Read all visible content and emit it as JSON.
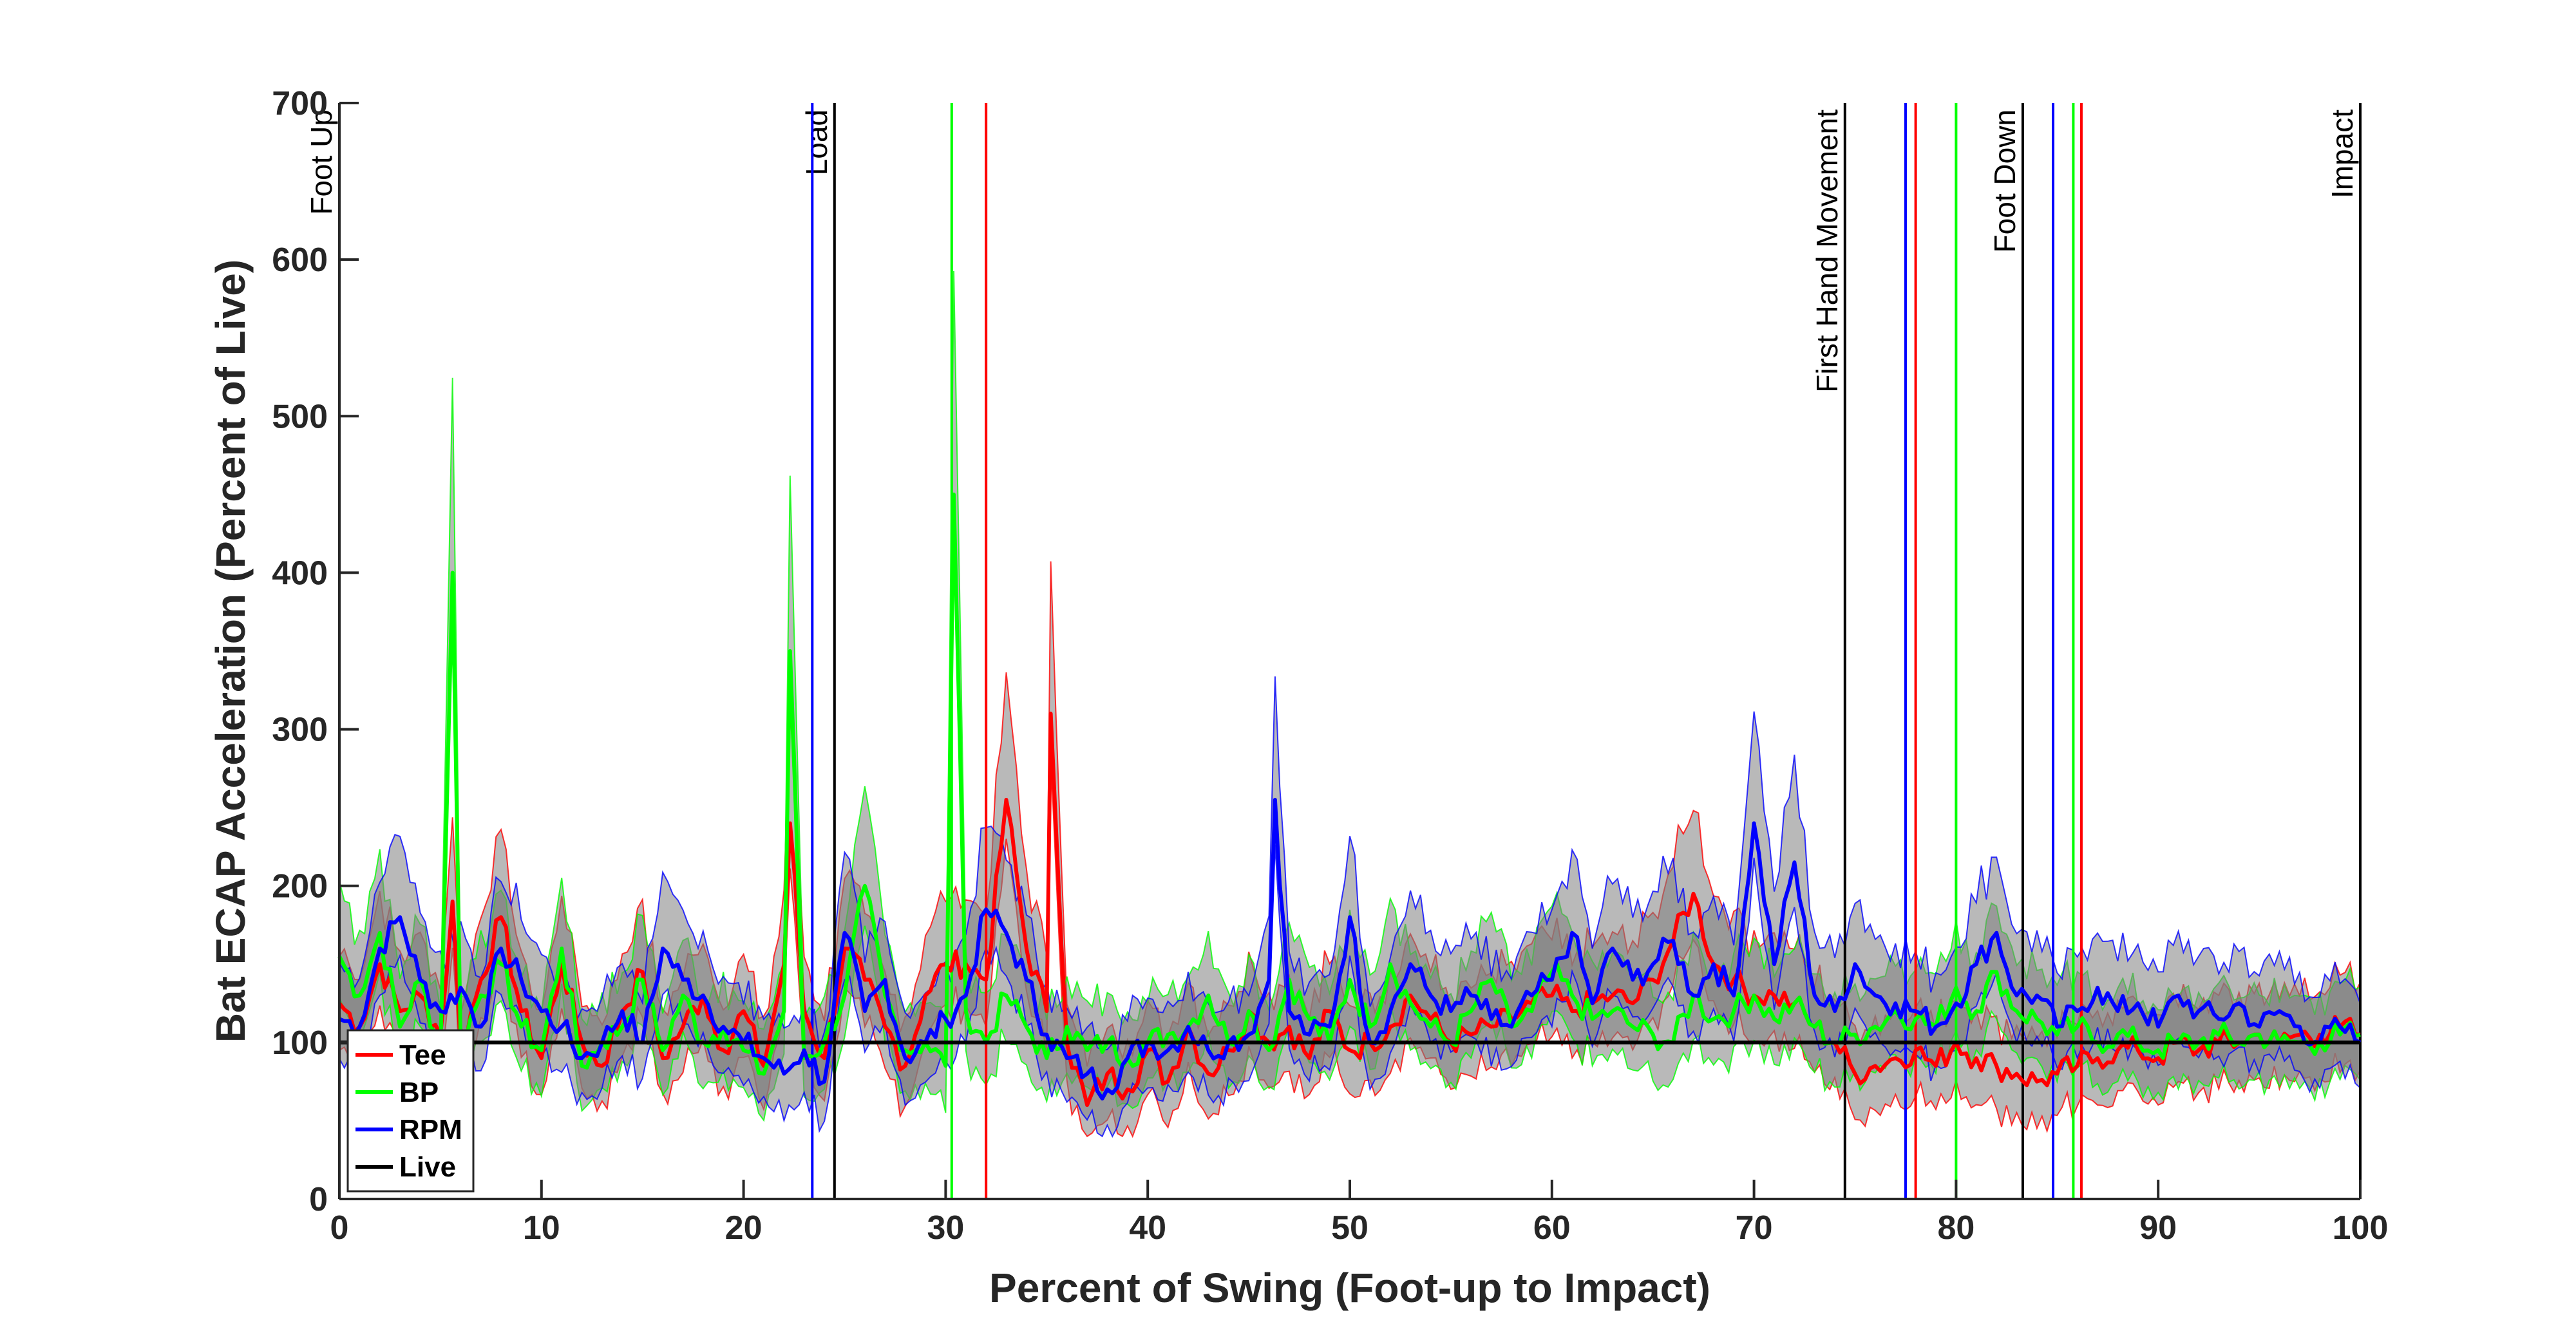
{
  "chart_data": {
    "type": "line",
    "title": "",
    "xlabel": "Percent of Swing (Foot-up to Impact)",
    "ylabel": "Bat ECAP Acceleration (Percent of Live)",
    "xlim": [
      0,
      100
    ],
    "ylim": [
      0,
      700
    ],
    "xticks": [
      0,
      10,
      20,
      30,
      40,
      50,
      60,
      70,
      80,
      90,
      100
    ],
    "yticks": [
      0,
      100,
      200,
      300,
      400,
      500,
      600,
      700
    ],
    "grid": false,
    "legend_position": "bottom-left",
    "shading": "gray band = variability around each mean curve",
    "series": [
      {
        "name": "Tee",
        "color": "#ff0000",
        "x": [
          0,
          1,
          2,
          3,
          4,
          5,
          5.6,
          6,
          7,
          8,
          9,
          10,
          11,
          12,
          13,
          14,
          15,
          16,
          17,
          18,
          19,
          20,
          21,
          22,
          22.3,
          23,
          24,
          25,
          26,
          27,
          28,
          29,
          30,
          31,
          32,
          33,
          34,
          35,
          35.2,
          36,
          37,
          38,
          39,
          40,
          41,
          42,
          43,
          44,
          45,
          46,
          47,
          48,
          49,
          50,
          51,
          52,
          53,
          54,
          55,
          56,
          57,
          58,
          59,
          60,
          61,
          62,
          63,
          64,
          65,
          66,
          67,
          68,
          69,
          70,
          71,
          72,
          73,
          74,
          75,
          76,
          77,
          78,
          79,
          80,
          81,
          82,
          83,
          84,
          85,
          86,
          87,
          88,
          89,
          90,
          91,
          92,
          93,
          94,
          95,
          96,
          97,
          98,
          99,
          100
        ],
        "values": [
          125,
          110,
          150,
          120,
          130,
          105,
          190,
          95,
          140,
          180,
          120,
          90,
          150,
          100,
          85,
          120,
          145,
          90,
          110,
          130,
          95,
          120,
          85,
          150,
          240,
          120,
          90,
          160,
          140,
          110,
          85,
          130,
          150,
          150,
          140,
          255,
          160,
          120,
          310,
          100,
          60,
          80,
          70,
          95,
          75,
          110,
          80,
          95,
          120,
          100,
          110,
          90,
          120,
          95,
          100,
          110,
          130,
          115,
          100,
          105,
          110,
          115,
          125,
          130,
          120,
          125,
          130,
          125,
          140,
          165,
          195,
          150,
          140,
          130,
          130,
          125,
          110,
          100,
          80,
          85,
          90,
          95,
          85,
          100,
          90,
          85,
          80,
          75,
          80,
          85,
          90,
          95,
          95,
          90,
          100,
          95,
          100,
          100,
          105,
          100,
          105,
          105,
          110,
          105
        ]
      },
      {
        "name": "BP",
        "color": "#00ff00",
        "x": [
          0,
          1,
          2,
          3,
          4,
          5,
          5.6,
          6,
          7,
          8,
          9,
          10,
          11,
          12,
          13,
          14,
          15,
          16,
          17,
          18,
          19,
          20,
          21,
          22,
          22.3,
          23,
          24,
          25,
          26,
          27,
          28,
          29,
          30,
          30.4,
          31,
          32,
          33,
          34,
          35,
          36,
          37,
          38,
          39,
          40,
          41,
          42,
          43,
          44,
          45,
          46,
          47,
          48,
          49,
          50,
          51,
          52,
          53,
          54,
          55,
          56,
          57,
          58,
          59,
          60,
          61,
          62,
          63,
          64,
          65,
          66,
          67,
          68,
          69,
          70,
          71,
          72,
          73,
          74,
          75,
          76,
          77,
          78,
          79,
          80,
          81,
          82,
          83,
          84,
          85,
          86,
          87,
          88,
          89,
          90,
          91,
          92,
          93,
          94,
          95,
          96,
          97,
          98,
          99,
          100
        ],
        "values": [
          155,
          130,
          170,
          110,
          140,
          95,
          400,
          100,
          130,
          150,
          110,
          95,
          160,
          85,
          100,
          110,
          140,
          95,
          130,
          100,
          110,
          95,
          80,
          120,
          350,
          90,
          100,
          130,
          200,
          130,
          95,
          100,
          85,
          450,
          120,
          100,
          130,
          110,
          90,
          110,
          95,
          100,
          90,
          100,
          105,
          110,
          130,
          100,
          120,
          95,
          140,
          115,
          100,
          140,
          110,
          150,
          125,
          110,
          100,
          120,
          140,
          110,
          120,
          145,
          130,
          115,
          120,
          110,
          105,
          100,
          130,
          115,
          120,
          130,
          115,
          125,
          110,
          100,
          105,
          110,
          120,
          115,
          110,
          135,
          120,
          145,
          120,
          115,
          105,
          110,
          100,
          105,
          100,
          95,
          100,
          100,
          105,
          100,
          105,
          100,
          100,
          100,
          105,
          105
        ]
      },
      {
        "name": "RPM",
        "color": "#0000ff",
        "x": [
          0,
          1,
          2,
          3,
          4,
          5,
          6,
          7,
          8,
          9,
          10,
          11,
          12,
          13,
          14,
          15,
          16,
          17,
          18,
          19,
          20,
          21,
          22,
          23,
          24,
          25,
          26,
          27,
          28,
          29,
          30,
          31,
          32,
          33,
          34,
          35,
          36,
          37,
          38,
          39,
          40,
          41,
          42,
          43,
          44,
          45,
          46,
          46.3,
          47,
          48,
          49,
          50,
          51,
          52,
          53,
          54,
          55,
          56,
          57,
          58,
          59,
          60,
          61,
          62,
          63,
          64,
          65,
          66,
          67,
          68,
          69,
          70,
          71,
          72,
          73,
          74,
          75,
          76,
          77,
          78,
          79,
          80,
          81,
          82,
          83,
          84,
          85,
          86,
          87,
          88,
          89,
          90,
          91,
          92,
          93,
          94,
          95,
          96,
          97,
          98,
          99,
          100
        ],
        "values": [
          115,
          110,
          160,
          180,
          140,
          120,
          135,
          110,
          160,
          140,
          120,
          110,
          90,
          100,
          120,
          100,
          160,
          140,
          130,
          110,
          100,
          90,
          80,
          95,
          75,
          170,
          120,
          140,
          90,
          100,
          115,
          130,
          185,
          170,
          140,
          105,
          90,
          80,
          70,
          90,
          100,
          95,
          110,
          95,
          100,
          105,
          140,
          255,
          120,
          105,
          110,
          180,
          100,
          120,
          150,
          130,
          120,
          130,
          115,
          110,
          130,
          140,
          170,
          125,
          160,
          140,
          150,
          165,
          130,
          150,
          130,
          240,
          150,
          215,
          130,
          120,
          150,
          130,
          125,
          120,
          110,
          125,
          150,
          170,
          130,
          130,
          110,
          120,
          135,
          120,
          125,
          110,
          130,
          120,
          115,
          125,
          110,
          120,
          110,
          100,
          110,
          100
        ]
      },
      {
        "name": "Live",
        "color": "#000000",
        "x": [
          0,
          100
        ],
        "values": [
          100,
          100
        ]
      }
    ],
    "event_lines": [
      {
        "label": "Foot Up",
        "x": 0,
        "color": "#000000"
      },
      {
        "label": "Load",
        "x": 24.5,
        "color": "#000000"
      },
      {
        "label": "",
        "x": 23.4,
        "color": "#0000ff"
      },
      {
        "label": "",
        "x": 30.3,
        "color": "#00ff00"
      },
      {
        "label": "",
        "x": 32.0,
        "color": "#ff0000"
      },
      {
        "label": "First Hand Movement",
        "x": 74.5,
        "color": "#000000"
      },
      {
        "label": "",
        "x": 77.5,
        "color": "#0000ff"
      },
      {
        "label": "",
        "x": 78.0,
        "color": "#ff0000"
      },
      {
        "label": "",
        "x": 80.0,
        "color": "#00ff00"
      },
      {
        "label": "Foot Down",
        "x": 83.3,
        "color": "#000000"
      },
      {
        "label": "",
        "x": 84.8,
        "color": "#0000ff"
      },
      {
        "label": "",
        "x": 85.8,
        "color": "#00ff00"
      },
      {
        "label": "",
        "x": 86.2,
        "color": "#ff0000"
      },
      {
        "label": "Impact",
        "x": 100,
        "color": "#000000"
      }
    ]
  }
}
